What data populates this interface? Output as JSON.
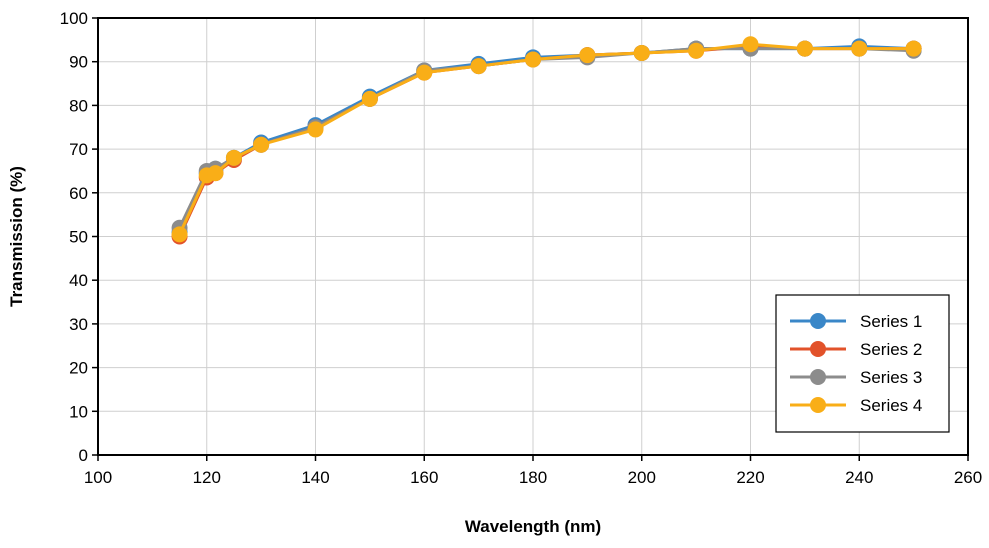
{
  "chart_data": {
    "type": "line",
    "title": "",
    "xlabel": "Wavelength (nm)",
    "ylabel": "Transmission (%)",
    "xlim": [
      100,
      260
    ],
    "ylim": [
      0,
      100
    ],
    "xticks": [
      100,
      120,
      140,
      160,
      180,
      200,
      220,
      240,
      260
    ],
    "yticks": [
      0,
      10,
      20,
      30,
      40,
      50,
      60,
      70,
      80,
      90,
      100
    ],
    "grid": true,
    "legend_position": "bottom-right",
    "series": [
      {
        "name": "Series 1",
        "color": "#3a87c8",
        "x": [
          115,
          120,
          121.6,
          125,
          130,
          140,
          150,
          160,
          170,
          180,
          190,
          200,
          210,
          220,
          230,
          240,
          250
        ],
        "y": [
          51,
          64.5,
          65.5,
          68,
          71.5,
          75.5,
          82,
          88,
          89.5,
          91,
          91.5,
          92,
          93,
          93,
          93,
          93.5,
          93
        ]
      },
      {
        "name": "Series 2",
        "color": "#e2522a",
        "x": [
          115,
          120,
          121.6,
          125,
          130,
          140,
          150,
          160,
          170,
          180,
          190,
          200,
          210,
          220,
          230,
          240,
          250
        ],
        "y": [
          50,
          63.5,
          64.5,
          67.5,
          71,
          75,
          81.5,
          87.5,
          89,
          90.5,
          91.5,
          92,
          92.5,
          93.5,
          93,
          93,
          93
        ]
      },
      {
        "name": "Series 3",
        "color": "#8c8c8c",
        "x": [
          115,
          120,
          121.6,
          125,
          130,
          140,
          150,
          160,
          170,
          180,
          190,
          200,
          210,
          220,
          230,
          240,
          250
        ],
        "y": [
          52,
          65,
          65.5,
          68,
          71,
          75,
          81.5,
          88,
          89,
          90.5,
          91,
          92,
          93,
          93,
          93,
          93,
          92.5
        ]
      },
      {
        "name": "Series 4",
        "color": "#f9ae17",
        "x": [
          115,
          120,
          121.6,
          125,
          130,
          140,
          150,
          160,
          170,
          180,
          190,
          200,
          210,
          220,
          230,
          240,
          250
        ],
        "y": [
          50.5,
          64,
          64.5,
          68,
          71,
          74.5,
          81.5,
          87.5,
          89,
          90.5,
          91.5,
          92,
          92.5,
          94,
          93,
          93,
          93
        ]
      }
    ]
  }
}
